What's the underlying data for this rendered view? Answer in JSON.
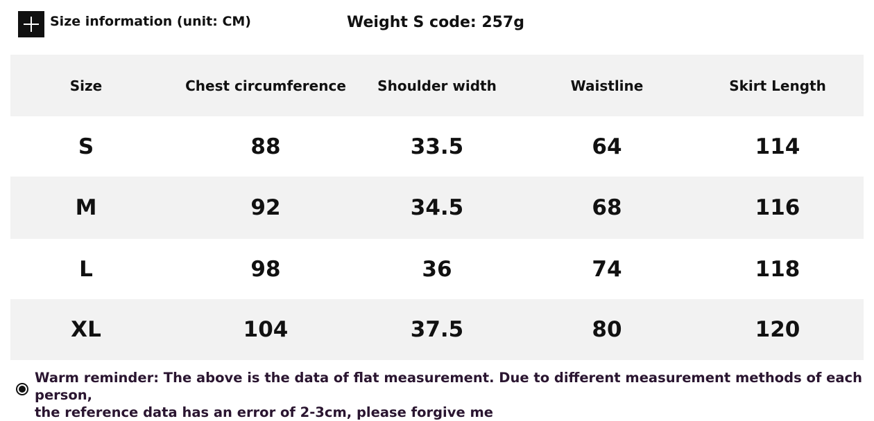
{
  "header": {
    "title": "Size information (unit: CM)",
    "weight": "Weight S code: 257g"
  },
  "table": {
    "columns": [
      "Size",
      "Chest circumference",
      "Shoulder width",
      "Waistline",
      "Skirt Length"
    ],
    "rows": [
      [
        "S",
        88,
        33.5,
        64,
        114
      ],
      [
        "M",
        92,
        34.5,
        68,
        116
      ],
      [
        "L",
        98,
        36,
        74,
        118
      ],
      [
        "XL",
        104,
        37.5,
        80,
        120
      ]
    ]
  },
  "footer": {
    "lines": [
      "Warm reminder: The above is the data of flat measurement. Due to different measurement methods of each person,",
      "the reference data has an error of 2-3cm, please forgive me"
    ]
  }
}
